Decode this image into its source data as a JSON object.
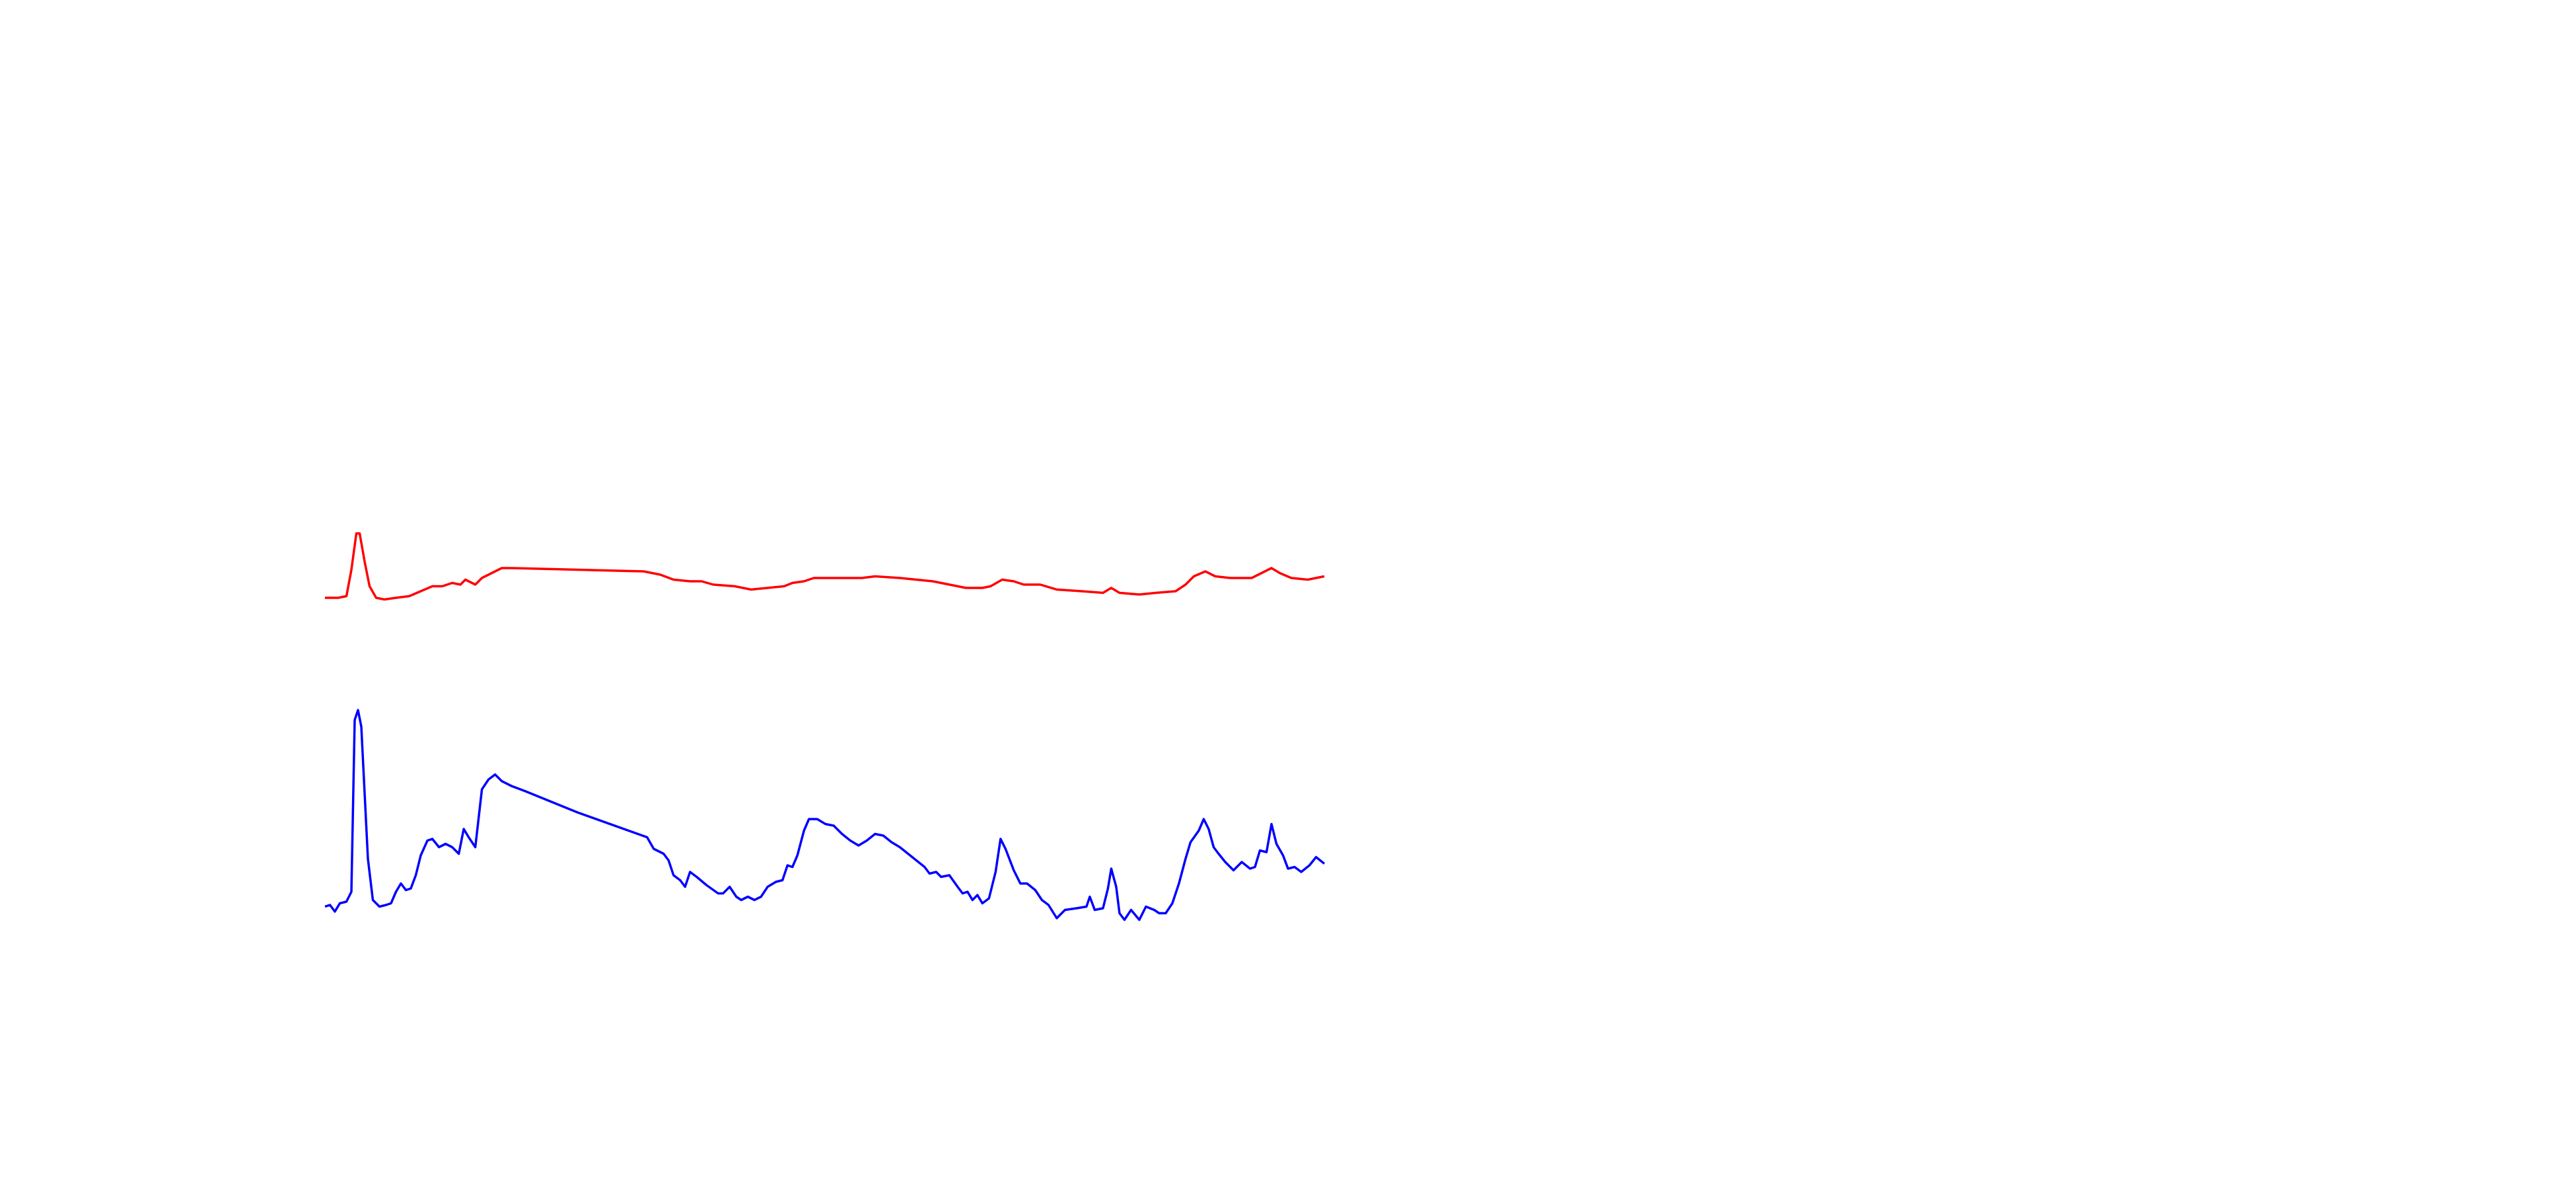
{
  "chart_data": [
    {
      "type": "line",
      "xlim": [
        197,
        802
      ],
      "ylim": [
        0,
        720
      ],
      "x": [
        197,
        205,
        210,
        213,
        216,
        218,
        221,
        224,
        228,
        233,
        240,
        248,
        255,
        262,
        268,
        274,
        279,
        282,
        288,
        292,
        298,
        304,
        310,
        390,
        400,
        408,
        418,
        425,
        432,
        445,
        455,
        465,
        475,
        480,
        487,
        493,
        505,
        515,
        522,
        530,
        545,
        555,
        565,
        575,
        585,
        595,
        600,
        607,
        614,
        620,
        630,
        640,
        655,
        668,
        673,
        678,
        690,
        700,
        712,
        718,
        723,
        730,
        736,
        745,
        758,
        764,
        770,
        775,
        782,
        792,
        802
      ],
      "series": [
        {
          "color": "#ff0000",
          "values": [
            358,
            358,
            359,
            375,
            397,
            397,
            380,
            365,
            358,
            357,
            358,
            359,
            362,
            365,
            365,
            367,
            366,
            369,
            366,
            370,
            373,
            376,
            376,
            374,
            372,
            369,
            368,
            368,
            366,
            365,
            363,
            364,
            365,
            367,
            368,
            370,
            370,
            370,
            370,
            371,
            370,
            369,
            368,
            366,
            364,
            364,
            365,
            369,
            368,
            366,
            366,
            363,
            362,
            361,
            364,
            361,
            360,
            361,
            362,
            366,
            371,
            374,
            371,
            370,
            370,
            373,
            376,
            373,
            370,
            369,
            371
          ]
        }
      ]
    },
    {
      "type": "line",
      "xlim": [
        197,
        802
      ],
      "ylim": [
        0,
        720
      ],
      "x": [
        197,
        200,
        203,
        206,
        210,
        213,
        215,
        217,
        219,
        223,
        226,
        230,
        234,
        237,
        240,
        243,
        246,
        249,
        252,
        255,
        259,
        262,
        266,
        270,
        274,
        278,
        281,
        284,
        288,
        292,
        296,
        300,
        304,
        310,
        318,
        350,
        392,
        396,
        402,
        405,
        408,
        412,
        415,
        418,
        422,
        428,
        435,
        438,
        442,
        446,
        449,
        453,
        457,
        461,
        465,
        470,
        474,
        477,
        480,
        483,
        487,
        490,
        495,
        500,
        505,
        510,
        515,
        520,
        525,
        530,
        535,
        540,
        545,
        550,
        555,
        560,
        563,
        567,
        570,
        575,
        580,
        583,
        586,
        589,
        592,
        595,
        599,
        603,
        606,
        609,
        614,
        618,
        622,
        627,
        631,
        635,
        640,
        645,
        652,
        658,
        660,
        663,
        668,
        671,
        673,
        676,
        678,
        681,
        685,
        690,
        694,
        699,
        702,
        706,
        710,
        714,
        718,
        721,
        726,
        729,
        732,
        735,
        738,
        742,
        747,
        752,
        757,
        760,
        763,
        767,
        770,
        773,
        777,
        780,
        784,
        788,
        793,
        797,
        802
      ],
      "series": [
        {
          "color": "#0000ff",
          "values": [
            171,
            172,
            168,
            173,
            174,
            180,
            284,
            290,
            280,
            200,
            175,
            171,
            172,
            173,
            180,
            185,
            181,
            182,
            190,
            202,
            211,
            212,
            207,
            209,
            207,
            203,
            218,
            213,
            207,
            242,
            248,
            251,
            247,
            244,
            241,
            228,
            213,
            206,
            203,
            199,
            190,
            187,
            183,
            192,
            189,
            184,
            179,
            179,
            183,
            177,
            175,
            177,
            175,
            177,
            183,
            186,
            187,
            196,
            195,
            202,
            217,
            224,
            224,
            221,
            220,
            215,
            211,
            208,
            211,
            215,
            214,
            210,
            207,
            203,
            199,
            195,
            191,
            192,
            189,
            190,
            183,
            179,
            180,
            175,
            178,
            173,
            176,
            192,
            212,
            206,
            193,
            185,
            185,
            181,
            175,
            172,
            164,
            169,
            170,
            171,
            177,
            169,
            170,
            182,
            194,
            183,
            167,
            163,
            169,
            163,
            171,
            169,
            167,
            167,
            173,
            185,
            200,
            210,
            217,
            224,
            218,
            207,
            203,
            198,
            193,
            198,
            194,
            195,
            205,
            204,
            221,
            209,
            202,
            194,
            195,
            192,
            196,
            201,
            197
          ]
        }
      ]
    }
  ]
}
